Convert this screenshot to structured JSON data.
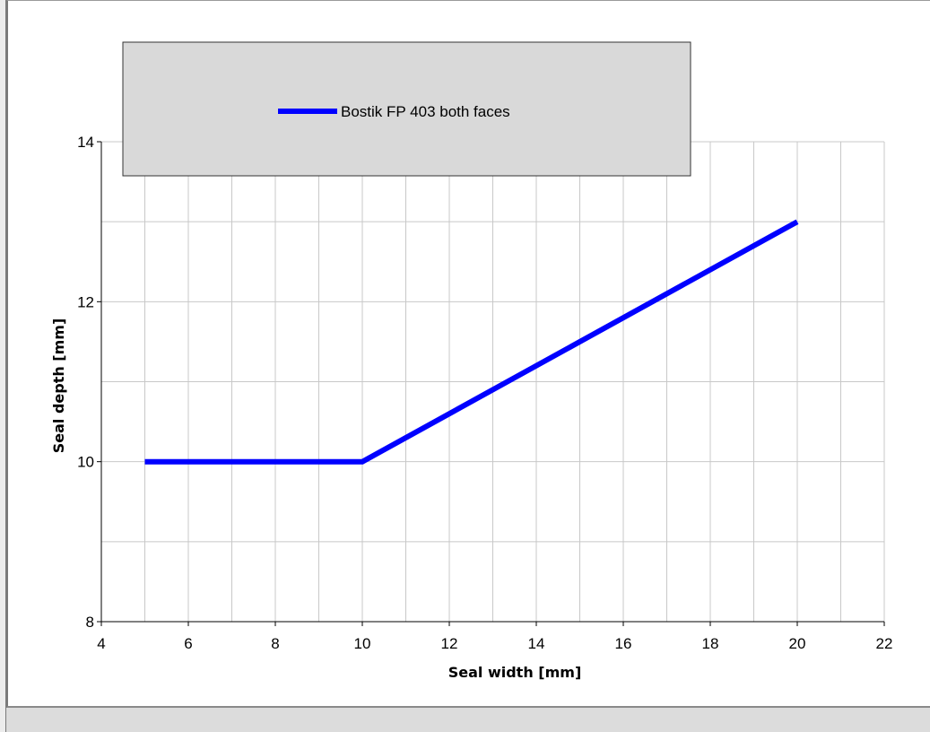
{
  "chart_data": {
    "type": "line",
    "xlabel": "Seal width [mm]",
    "ylabel": "Seal depth [mm]",
    "xlim": [
      4,
      22
    ],
    "ylim": [
      8,
      14
    ],
    "x_ticks": [
      4,
      6,
      8,
      10,
      12,
      14,
      16,
      18,
      20,
      22
    ],
    "y_ticks": [
      8,
      10,
      12,
      14
    ],
    "grid": true,
    "legend_position": "top",
    "series": [
      {
        "name": "Bostik FP 403 both faces",
        "color": "#0000ff",
        "x": [
          5,
          10,
          20
        ],
        "y": [
          10,
          10,
          13
        ]
      }
    ]
  }
}
